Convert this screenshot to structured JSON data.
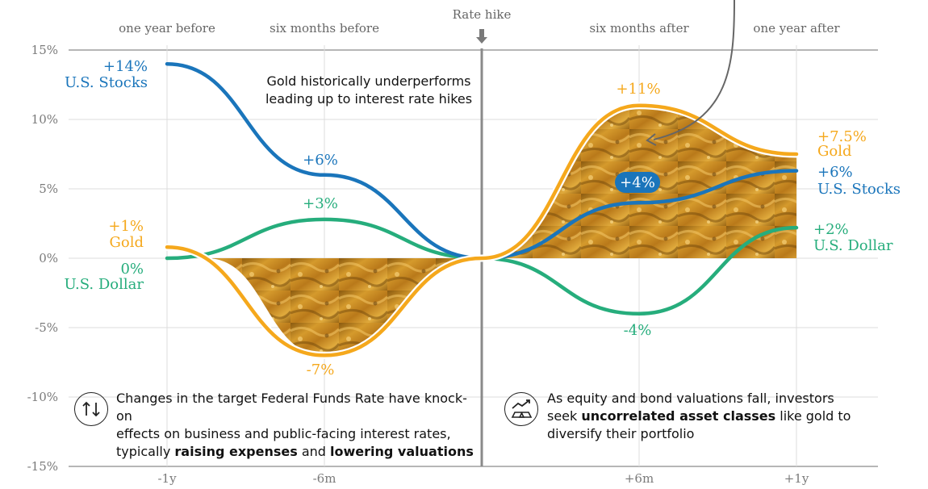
{
  "chart_data": {
    "type": "line",
    "x_labels_bottom": [
      "-1y",
      "-6m",
      "+6m",
      "+1y"
    ],
    "x_labels_top": [
      "one year before",
      "six months before",
      "six months after",
      "one year after"
    ],
    "center_event_label": "Rate hike",
    "y_ticks": [
      "15%",
      "10%",
      "5%",
      "0%",
      "-5%",
      "-10%",
      "-15%"
    ],
    "ylim": [
      -15,
      15
    ],
    "grid": true,
    "series": [
      {
        "name": "U.S. Stocks",
        "color": "#1a75bb",
        "points": [
          {
            "x": -12,
            "y": 14
          },
          {
            "x": -6,
            "y": 6
          },
          {
            "x": 0,
            "y": 0
          },
          {
            "x": 6,
            "y": 4
          },
          {
            "x": 12,
            "y": 6.3
          }
        ],
        "labels": [
          {
            "text": "+14%"
          },
          {
            "text": "+6%"
          },
          {
            "text": "+4%"
          },
          {
            "text": "+6%"
          }
        ]
      },
      {
        "name": "U.S. Dollar",
        "color": "#26ad7c",
        "points": [
          {
            "x": -12,
            "y": 0
          },
          {
            "x": -6,
            "y": 2.8
          },
          {
            "x": 0,
            "y": 0
          },
          {
            "x": 6,
            "y": -4
          },
          {
            "x": 12,
            "y": 2.2
          }
        ],
        "labels": [
          {
            "text": "0%"
          },
          {
            "text": "+3%"
          },
          {
            "text": "-4%"
          },
          {
            "text": "+2%"
          }
        ]
      },
      {
        "name": "Gold",
        "color": "#f5a81c",
        "points": [
          {
            "x": -12,
            "y": 0.8
          },
          {
            "x": -6,
            "y": -7
          },
          {
            "x": 0,
            "y": 0
          },
          {
            "x": 6,
            "y": 11
          },
          {
            "x": 12,
            "y": 7.5
          }
        ],
        "labels": [
          {
            "text": "+1%"
          },
          {
            "text": "-7%"
          },
          {
            "text": "+11%"
          },
          {
            "text": "+7.5%"
          }
        ]
      }
    ],
    "annotations": {
      "gold_underperform": [
        "Gold historically underperforms",
        "leading up to interest rate hikes"
      ]
    }
  },
  "notes": {
    "left": {
      "line1": "Changes in the target Federal Funds Rate have knock-on",
      "line2": "effects on business and public-facing interest rates,",
      "line3_pre": "typically ",
      "line3_b1": "raising expenses",
      "line3_mid": " and ",
      "line3_b2": "lowering valuations"
    },
    "right": {
      "line1": "As equity and bond valuations fall, investors",
      "line2_pre": "seek ",
      "line2_b": "uncorrelated asset classes",
      "line2_post": " like gold to",
      "line3": "diversify their portfolio"
    }
  }
}
